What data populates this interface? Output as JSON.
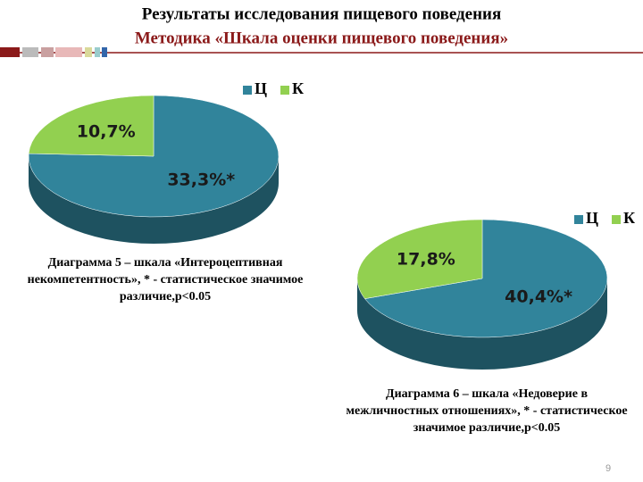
{
  "slide": {
    "title": "Результаты исследования пищевого поведения",
    "subtitle": "Методика «Шкала оценки пищевого поведения»",
    "page_number": "9"
  },
  "chart_data": [
    {
      "type": "pie",
      "categories": [
        "Ц",
        "К"
      ],
      "values": [
        33.3,
        10.7
      ],
      "value_labels": [
        "33,3%*",
        "10,7%"
      ],
      "colors": [
        "#31849b",
        "#92d050"
      ],
      "caption": "Диаграмма 5 – шкала «Интероцептивная некомпетентность», * - статистическое значимое различие,p<0.05"
    },
    {
      "type": "pie",
      "categories": [
        "Ц",
        "К"
      ],
      "values": [
        40.4,
        17.8
      ],
      "value_labels": [
        "40,4%*",
        "17,8%"
      ],
      "colors": [
        "#31849b",
        "#92d050"
      ],
      "caption": "Диаграмма 6 – шкала «Недоверие в межличностных отношениях», * - статистическое значимое различие,p<0.05"
    }
  ]
}
